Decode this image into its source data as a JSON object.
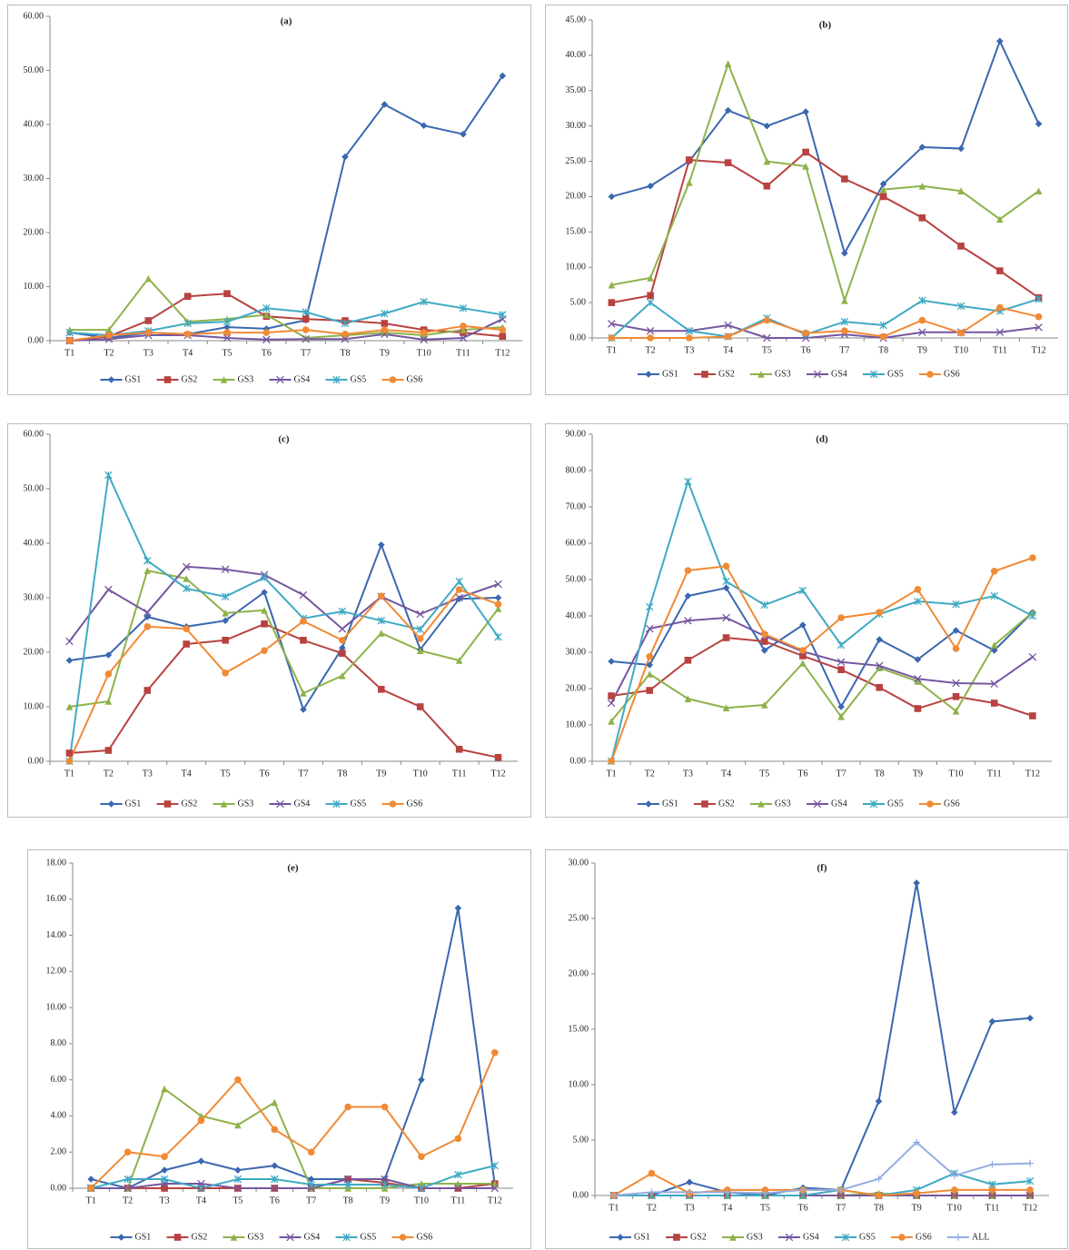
{
  "chart_data": [
    {
      "type": "line",
      "title": "(a)",
      "legend": "bottom",
      "categories": [
        "T1",
        "T2",
        "T3",
        "T4",
        "T5",
        "T6",
        "T7",
        "T8",
        "T9",
        "T10",
        "T11",
        "T12"
      ],
      "ylim": [
        0,
        60
      ],
      "yticks": [
        {
          "value": 0,
          "label": "0.00"
        },
        {
          "value": 10,
          "label": "10.00"
        },
        {
          "value": 20,
          "label": "20.00"
        },
        {
          "value": 30,
          "label": "30.00"
        },
        {
          "value": 40,
          "label": "40.00"
        },
        {
          "value": 50,
          "label": "50.00"
        },
        {
          "value": 60,
          "label": "60.00"
        }
      ],
      "series": [
        {
          "name": "GS1",
          "color": "#3a67b0",
          "marker": "diamond",
          "values": [
            1.5,
            0.5,
            1.5,
            1.2,
            2.5,
            2.2,
            3.8,
            34,
            43.7,
            39.8,
            38.2,
            49
          ]
        },
        {
          "name": "GS2",
          "color": "#b84240",
          "marker": "square",
          "values": [
            0,
            0.8,
            3.7,
            8.2,
            8.7,
            4.5,
            4.0,
            3.7,
            3.2,
            2.0,
            1.5,
            0.8
          ]
        },
        {
          "name": "GS3",
          "color": "#8db24a",
          "marker": "triangle",
          "values": [
            2.0,
            2.0,
            11.5,
            3.5,
            4.0,
            4.8,
            0.5,
            1.0,
            1.5,
            1.0,
            2.0,
            2.5
          ]
        },
        {
          "name": "GS4",
          "color": "#7556a0",
          "marker": "x",
          "values": [
            0,
            0.3,
            1.0,
            1.0,
            0.5,
            0.2,
            0.3,
            0.3,
            1.2,
            0.2,
            0.5,
            4.0
          ]
        },
        {
          "name": "GS5",
          "color": "#3fa9c4",
          "marker": "star",
          "values": [
            1.5,
            1.0,
            1.8,
            3.2,
            3.5,
            6.0,
            5.3,
            3.2,
            5.0,
            7.2,
            6.0,
            4.8
          ]
        },
        {
          "name": "GS6",
          "color": "#f08a35",
          "marker": "circle",
          "values": [
            0,
            1.0,
            1.5,
            1.2,
            1.5,
            1.5,
            2.0,
            1.2,
            2.0,
            1.5,
            2.7,
            2.0
          ]
        }
      ]
    },
    {
      "type": "line",
      "title": "(b)",
      "legend": "bottom",
      "categories": [
        "T1",
        "T2",
        "T3",
        "T4",
        "T5",
        "T6",
        "T7",
        "T8",
        "T9",
        "T10",
        "T11",
        "T12"
      ],
      "ylim": [
        0,
        45
      ],
      "yticks": [
        {
          "value": 0,
          "label": "0.00"
        },
        {
          "value": 5,
          "label": "5.00"
        },
        {
          "value": 10,
          "label": "10.00"
        },
        {
          "value": 15,
          "label": "15.00"
        },
        {
          "value": 20,
          "label": "20.00"
        },
        {
          "value": 25,
          "label": "25.00"
        },
        {
          "value": 30,
          "label": "30.00"
        },
        {
          "value": 35,
          "label": "35.00"
        },
        {
          "value": 40,
          "label": "40.00"
        },
        {
          "value": 45,
          "label": "45.00"
        }
      ],
      "series": [
        {
          "name": "GS1",
          "color": "#3a67b0",
          "marker": "diamond",
          "values": [
            20,
            21.5,
            25,
            32.2,
            30,
            32,
            12,
            21.8,
            27,
            26.8,
            42,
            30.3
          ]
        },
        {
          "name": "GS2",
          "color": "#b84240",
          "marker": "square",
          "values": [
            5,
            6,
            25.2,
            24.8,
            21.5,
            26.3,
            22.5,
            20,
            17,
            13,
            9.5,
            5.7
          ]
        },
        {
          "name": "GS3",
          "color": "#8db24a",
          "marker": "triangle",
          "values": [
            7.5,
            8.5,
            22,
            38.8,
            25,
            24.3,
            5.3,
            21,
            21.5,
            20.8,
            16.8,
            20.8
          ]
        },
        {
          "name": "GS4",
          "color": "#7556a0",
          "marker": "x",
          "values": [
            2,
            1,
            1,
            1.8,
            0,
            0,
            0.5,
            0,
            0.8,
            0.8,
            0.8,
            1.5
          ]
        },
        {
          "name": "GS5",
          "color": "#3fa9c4",
          "marker": "star",
          "values": [
            0,
            5,
            1,
            0.2,
            2.8,
            0.5,
            2.3,
            1.8,
            5.3,
            4.5,
            3.8,
            5.5
          ]
        },
        {
          "name": "GS6",
          "color": "#f08a35",
          "marker": "circle",
          "values": [
            0,
            0,
            0,
            0.2,
            2.5,
            0.7,
            1,
            0.2,
            2.5,
            0.7,
            4.3,
            3
          ]
        }
      ]
    },
    {
      "type": "line",
      "title": "(c)",
      "legend": "bottom",
      "categories": [
        "T1",
        "T2",
        "T3",
        "T4",
        "T5",
        "T6",
        "T7",
        "T8",
        "T9",
        "T10",
        "T11",
        "T12"
      ],
      "ylim": [
        0,
        60
      ],
      "yticks": [
        {
          "value": 0,
          "label": "0.00"
        },
        {
          "value": 10,
          "label": "10.00"
        },
        {
          "value": 20,
          "label": "20.00"
        },
        {
          "value": 30,
          "label": "30.00"
        },
        {
          "value": 40,
          "label": "40.00"
        },
        {
          "value": 50,
          "label": "50.00"
        },
        {
          "value": 60,
          "label": "60.00"
        }
      ],
      "series": [
        {
          "name": "GS1",
          "color": "#3a67b0",
          "marker": "diamond",
          "values": [
            18.5,
            19.5,
            26.5,
            24.7,
            25.8,
            31,
            9.5,
            20.8,
            39.7,
            20.5,
            29.8,
            30
          ]
        },
        {
          "name": "GS2",
          "color": "#b84240",
          "marker": "square",
          "values": [
            1.5,
            2,
            13,
            21.5,
            22.2,
            25.2,
            22.2,
            19.8,
            13.2,
            10,
            2.2,
            0.7
          ]
        },
        {
          "name": "GS3",
          "color": "#8db24a",
          "marker": "triangle",
          "values": [
            10,
            11,
            35,
            33.5,
            27.2,
            27.7,
            12.5,
            15.7,
            23.5,
            20.3,
            18.5,
            28
          ]
        },
        {
          "name": "GS4",
          "color": "#7556a0",
          "marker": "x",
          "values": [
            22,
            31.5,
            27.3,
            35.7,
            35.2,
            34.2,
            30.5,
            24.3,
            30.2,
            27,
            30,
            32.5
          ]
        },
        {
          "name": "GS5",
          "color": "#3fa9c4",
          "marker": "star",
          "values": [
            0,
            52.5,
            36.8,
            31.7,
            30.2,
            33.7,
            26.2,
            27.5,
            25.8,
            24.2,
            33,
            22.8
          ]
        },
        {
          "name": "GS6",
          "color": "#f08a35",
          "marker": "circle",
          "values": [
            0,
            16,
            24.7,
            24.3,
            16.2,
            20.3,
            25.7,
            22.2,
            30.3,
            22.5,
            31.5,
            28.8
          ]
        }
      ]
    },
    {
      "type": "line",
      "title": "(d)",
      "legend": "bottom",
      "categories": [
        "T1",
        "T2",
        "T3",
        "T4",
        "T5",
        "T6",
        "T7",
        "T8",
        "T9",
        "T10",
        "T11",
        "T12"
      ],
      "ylim": [
        0,
        90
      ],
      "yticks": [
        {
          "value": 0,
          "label": "0.00"
        },
        {
          "value": 10,
          "label": "10.00"
        },
        {
          "value": 20,
          "label": "20.00"
        },
        {
          "value": 30,
          "label": "30.00"
        },
        {
          "value": 40,
          "label": "40.00"
        },
        {
          "value": 50,
          "label": "50.00"
        },
        {
          "value": 60,
          "label": "60.00"
        },
        {
          "value": 70,
          "label": "70.00"
        },
        {
          "value": 80,
          "label": "80.00"
        },
        {
          "value": 90,
          "label": "90.00"
        }
      ],
      "series": [
        {
          "name": "GS1",
          "color": "#3a67b0",
          "marker": "diamond",
          "values": [
            27.5,
            26.5,
            45.5,
            47.7,
            30.5,
            37.5,
            15,
            33.5,
            28,
            36,
            30.5,
            41
          ]
        },
        {
          "name": "GS2",
          "color": "#b84240",
          "marker": "square",
          "values": [
            18,
            19.5,
            27.8,
            34,
            33,
            29,
            25.2,
            20.3,
            14.5,
            17.8,
            16,
            12.5
          ]
        },
        {
          "name": "GS3",
          "color": "#8db24a",
          "marker": "triangle",
          "values": [
            11,
            24,
            17.2,
            14.7,
            15.5,
            27,
            12.3,
            25.7,
            22,
            13.8,
            32,
            41
          ]
        },
        {
          "name": "GS4",
          "color": "#7556a0",
          "marker": "x",
          "values": [
            16,
            36.5,
            38.7,
            39.5,
            34.5,
            30.2,
            27.3,
            26.3,
            22.7,
            21.5,
            21.3,
            28.7
          ]
        },
        {
          "name": "GS5",
          "color": "#3fa9c4",
          "marker": "star",
          "values": [
            0,
            42.5,
            77,
            49.5,
            43,
            47,
            32,
            40.5,
            44,
            43.2,
            45.5,
            40
          ]
        },
        {
          "name": "GS6",
          "color": "#f08a35",
          "marker": "circle",
          "values": [
            0,
            28.8,
            52.5,
            53.7,
            35,
            30.5,
            39.5,
            41,
            47.3,
            31,
            52.3,
            56
          ]
        }
      ]
    },
    {
      "type": "line",
      "title": "(e)",
      "legend": "bottom",
      "categories": [
        "T1",
        "T2",
        "T3",
        "T4",
        "T5",
        "T6",
        "T7",
        "T8",
        "T9",
        "T10",
        "T11",
        "T12"
      ],
      "ylim": [
        0,
        18
      ],
      "yticks": [
        {
          "value": 0,
          "label": "0.00"
        },
        {
          "value": 2,
          "label": "2.00"
        },
        {
          "value": 4,
          "label": "4.00"
        },
        {
          "value": 6,
          "label": "6.00"
        },
        {
          "value": 8,
          "label": "8.00"
        },
        {
          "value": 10,
          "label": "10.00"
        },
        {
          "value": 12,
          "label": "12.00"
        },
        {
          "value": 14,
          "label": "14.00"
        },
        {
          "value": 16,
          "label": "16.00"
        },
        {
          "value": 18,
          "label": "18.00"
        }
      ],
      "series": [
        {
          "name": "GS1",
          "color": "#3a67b0",
          "marker": "diamond",
          "values": [
            0.5,
            0,
            1,
            1.5,
            1,
            1.25,
            0.5,
            0.5,
            0.5,
            6,
            15.5,
            0.2
          ]
        },
        {
          "name": "GS2",
          "color": "#b84240",
          "marker": "square",
          "values": [
            0,
            0,
            0,
            0,
            0,
            0,
            0,
            0.5,
            0.3,
            0,
            0,
            0.25
          ]
        },
        {
          "name": "GS3",
          "color": "#8db24a",
          "marker": "triangle",
          "values": [
            0,
            0,
            5.5,
            4,
            3.5,
            4.75,
            0,
            0,
            0,
            0.25,
            0.25,
            0.25
          ]
        },
        {
          "name": "GS4",
          "color": "#7556a0",
          "marker": "x",
          "values": [
            0,
            0,
            0.25,
            0.25,
            0,
            0,
            0,
            0.5,
            0.5,
            0,
            0,
            0
          ]
        },
        {
          "name": "GS5",
          "color": "#3fa9c4",
          "marker": "star",
          "values": [
            0,
            0.5,
            0.5,
            0,
            0.5,
            0.5,
            0.2,
            0.2,
            0.2,
            0,
            0.75,
            1.25
          ]
        },
        {
          "name": "GS6",
          "color": "#f08a35",
          "marker": "circle",
          "values": [
            0,
            2,
            1.75,
            3.75,
            6,
            3.25,
            2,
            4.5,
            4.5,
            1.75,
            2.75,
            7.5
          ]
        }
      ]
    },
    {
      "type": "line",
      "title": "(f)",
      "legend": "bottom",
      "categories": [
        "T1",
        "T2",
        "T3",
        "T4",
        "T5",
        "T6",
        "T7",
        "T8",
        "T9",
        "T10",
        "T11",
        "T12"
      ],
      "ylim": [
        0,
        30
      ],
      "yticks": [
        {
          "value": 0,
          "label": "0.00"
        },
        {
          "value": 5,
          "label": "5.00"
        },
        {
          "value": 10,
          "label": "10.00"
        },
        {
          "value": 15,
          "label": "15.00"
        },
        {
          "value": 20,
          "label": "20.00"
        },
        {
          "value": 25,
          "label": "25.00"
        },
        {
          "value": 30,
          "label": "30.00"
        }
      ],
      "series": [
        {
          "name": "GS1",
          "color": "#3a67b0",
          "marker": "diamond",
          "values": [
            0,
            0,
            1.2,
            0.3,
            0,
            0.7,
            0.5,
            8.5,
            28.2,
            7.5,
            15.7,
            16
          ]
        },
        {
          "name": "GS2",
          "color": "#b84240",
          "marker": "square",
          "values": [
            0,
            0,
            0,
            0,
            0,
            0,
            0,
            0,
            0,
            0,
            0,
            0
          ]
        },
        {
          "name": "GS3",
          "color": "#8db24a",
          "marker": "triangle",
          "values": [
            0,
            0,
            0,
            0,
            0,
            0,
            0,
            0.2,
            0,
            0,
            0,
            0
          ]
        },
        {
          "name": "GS4",
          "color": "#7556a0",
          "marker": "x",
          "values": [
            0,
            0,
            0,
            0,
            0,
            0,
            0,
            0,
            0,
            0,
            0,
            0
          ]
        },
        {
          "name": "GS5",
          "color": "#3fa9c4",
          "marker": "star",
          "values": [
            0,
            0,
            0,
            0,
            0,
            0,
            0.5,
            0,
            0.5,
            2,
            1,
            1.3
          ]
        },
        {
          "name": "GS6",
          "color": "#f08a35",
          "marker": "circle",
          "values": [
            0,
            2,
            0.2,
            0.5,
            0.5,
            0.5,
            0.5,
            0,
            0.2,
            0.5,
            0.5,
            0.5
          ]
        },
        {
          "name": "ALL",
          "color": "#93aee0",
          "marker": "plus",
          "values": [
            0,
            0.3,
            0.3,
            0.3,
            0.2,
            0.5,
            0.5,
            1.5,
            4.8,
            1.8,
            2.8,
            2.9
          ]
        }
      ]
    }
  ]
}
